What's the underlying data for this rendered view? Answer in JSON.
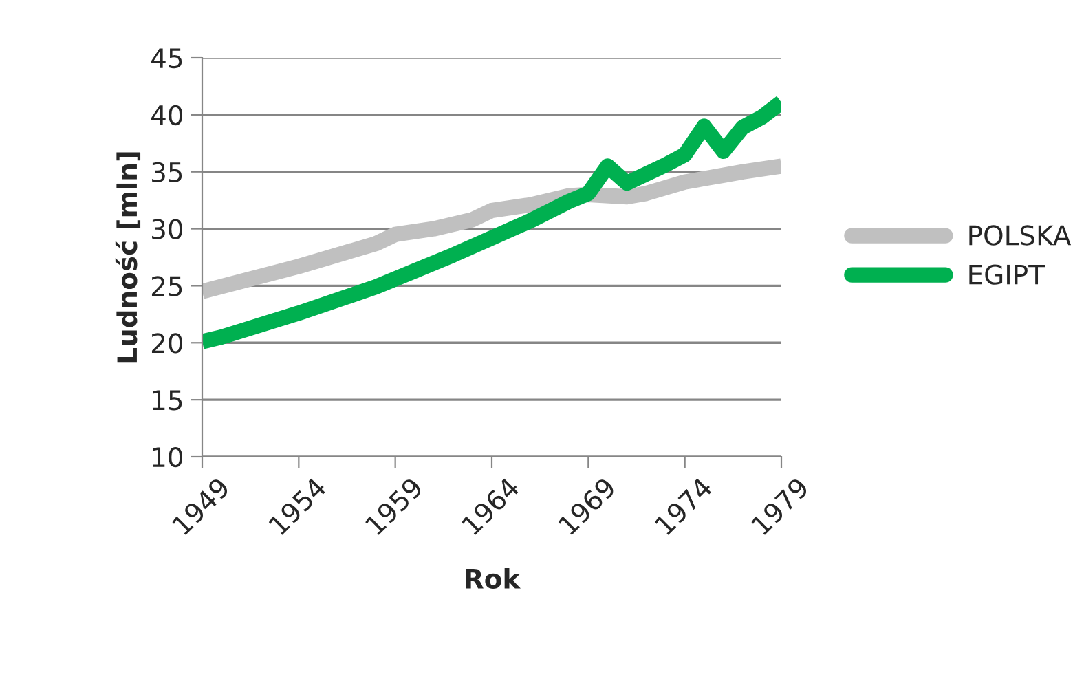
{
  "chart_data": {
    "type": "line",
    "xlabel": "Rok",
    "ylabel": "Ludność [mln]",
    "xlim": [
      1949,
      1979
    ],
    "xticks": [
      1949,
      1954,
      1959,
      1964,
      1969,
      1974,
      1979
    ],
    "ylim": [
      10,
      45
    ],
    "yticks": [
      10,
      15,
      20,
      25,
      30,
      35,
      40,
      45
    ],
    "grid": "y",
    "legend": "right",
    "marker": "none",
    "line_style": "solid",
    "series": [
      {
        "name": "POLSKA",
        "color": "#c0c0c0",
        "x": [
          1949,
          1954,
          1958,
          1959,
          1961,
          1963,
          1964,
          1966,
          1968,
          1969,
          1971,
          1972,
          1973,
          1974,
          1975,
          1976,
          1977,
          1979
        ],
        "values": [
          24.5,
          26.7,
          28.7,
          29.5,
          30.0,
          30.8,
          31.6,
          32.1,
          32.9,
          33.0,
          32.8,
          33.1,
          33.6,
          34.1,
          34.4,
          34.7,
          35.0,
          35.5
        ]
      },
      {
        "name": "EGIPT",
        "color": "#00b050",
        "x": [
          1949,
          1950,
          1954,
          1958,
          1960,
          1962,
          1964,
          1966,
          1968,
          1969,
          1970,
          1971,
          1972,
          1973,
          1974,
          1975,
          1976,
          1977,
          1978,
          1979
        ],
        "values": [
          20.1,
          20.5,
          22.6,
          24.9,
          26.3,
          27.7,
          29.2,
          30.7,
          32.4,
          33.1,
          35.5,
          34.0,
          34.8,
          35.6,
          36.5,
          39.0,
          36.8,
          38.9,
          39.8,
          41.1
        ]
      }
    ]
  }
}
